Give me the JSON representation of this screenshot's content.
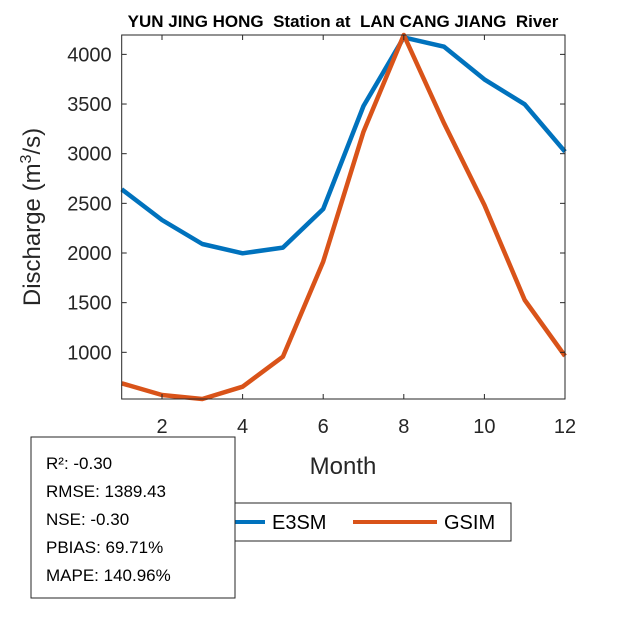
{
  "chart_data": {
    "type": "line",
    "title": "YUN JING HONG  Station at  LAN CANG JIANG  River",
    "xlabel": "Month",
    "ylabel_main": "Discharge (m",
    "ylabel_sup": "3",
    "ylabel_end": "/s)",
    "xlim": [
      1,
      12
    ],
    "ylim": [
      530,
      4195
    ],
    "xticks": [
      2,
      4,
      6,
      8,
      10,
      12
    ],
    "yticks": [
      1000,
      1500,
      2000,
      2500,
      3000,
      3500,
      4000
    ],
    "x": [
      1,
      2,
      3,
      4,
      5,
      6,
      7,
      8,
      9,
      10,
      11,
      12
    ],
    "series": [
      {
        "name": "E3SM",
        "color": "#0072BD",
        "values": [
          2641,
          2332,
          2091,
          1997,
          2054,
          2443,
          3480,
          4171,
          4077,
          3748,
          3497,
          3020
        ]
      },
      {
        "name": "GSIM",
        "color": "#D95319",
        "values": [
          688,
          570,
          530,
          654,
          956,
          1913,
          3221,
          4195,
          3305,
          2483,
          1527,
          963
        ]
      }
    ],
    "legend": {
      "placement": "bottom-outside",
      "entries": [
        "E3SM",
        "GSIM"
      ]
    },
    "grid": false
  },
  "stats": [
    "R²: -0.30",
    "RMSE: 1389.43",
    "NSE: -0.30",
    "PBIAS: 69.71%",
    "MAPE: 140.96%"
  ]
}
